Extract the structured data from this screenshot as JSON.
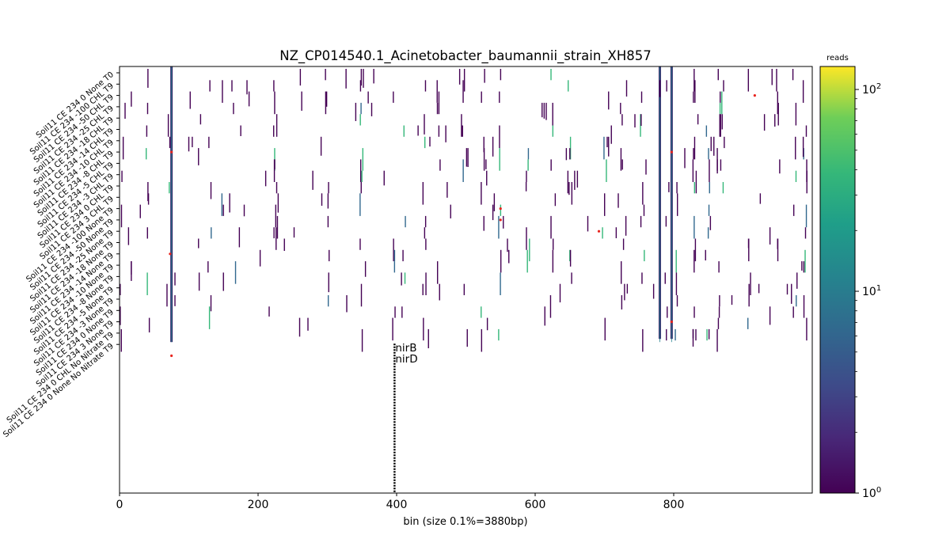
{
  "chart_data": {
    "type": "heatmap",
    "title": "NZ_CP014540.1_Acinetobacter_baumannii_strain_XH857",
    "xlabel": "bin (size 0.1%=3880bp)",
    "xlim": [
      0,
      1000
    ],
    "xticks": [
      0,
      200,
      400,
      600,
      800
    ],
    "rows": [
      "Soil11 CE 234 0 None T0",
      "Soil11 CE 234 -100 CHL T9",
      "Soil11 CE 234 -50 CHL T9",
      "Soil11 CE 234 -25 CHL T9",
      "Soil11 CE 234 -18 CHL T9",
      "Soil11 CE 234 -14 CHL T9",
      "Soil11 CE 234 -10 CHL T9",
      "Soil11 CE 234 -8 CHL T9",
      "Soil11 CE 234 -5 CHL T9",
      "Soil11 CE 234 -3 CHL T9",
      "Soil11 CE 234 0 CHL T9",
      "Soil11 CE 234 3 CHL T9",
      "Soil11 CE 234 -100 None T9",
      "Soil11 CE 234 -50 None T9",
      "Soil11 CE 234 -25 None T9",
      "Soil11 CE 234 -18 None T9",
      "Soil11 CE 234 -14 None T9",
      "Soil11 CE 234 -10 None T9",
      "Soil11 CE 234 -8 None T9",
      "Soil11 CE 234 -5 None T9",
      "Soil11 CE 234 -3 None T9",
      "Soil11 CE 234 0 None T9",
      "Soil11 CE 234 3 None T9",
      "Soil11 CE 234 0 CHL No Nitrate T9",
      "Soil11 CE 234 0 None No Nitrate T9"
    ],
    "colorbar": {
      "label": "reads",
      "scale": "log",
      "range": [
        1,
        130
      ],
      "ticks": [
        {
          "value": 1,
          "base": "10",
          "exp": "0"
        },
        {
          "value": 10,
          "base": "10",
          "exp": "1"
        },
        {
          "value": 100,
          "base": "10",
          "exp": "2"
        }
      ],
      "colormap": "viridis"
    },
    "strong_columns": [
      75,
      780,
      797
    ],
    "sparse_columns": [
      3,
      40,
      70,
      130,
      150,
      165,
      225,
      300,
      350,
      395,
      410,
      440,
      460,
      495,
      525,
      550,
      590,
      625,
      650,
      700,
      725,
      755,
      790,
      805,
      830,
      850,
      865,
      870,
      910,
      950,
      975,
      990
    ],
    "hotspots": [
      {
        "bin": 75,
        "row": 7
      },
      {
        "bin": 797,
        "row": 7
      },
      {
        "bin": 917,
        "row": 2
      },
      {
        "bin": 550,
        "row": 12
      },
      {
        "bin": 550,
        "row": 13
      },
      {
        "bin": 692,
        "row": 14
      },
      {
        "bin": 73,
        "row": 16
      },
      {
        "bin": 797,
        "row": 22
      },
      {
        "bin": 75,
        "row": 25
      }
    ],
    "annotations": [
      {
        "bin": 397,
        "labels": [
          "nirB",
          "nirD"
        ]
      }
    ]
  }
}
